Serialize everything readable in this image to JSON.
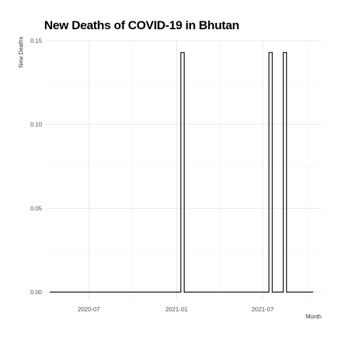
{
  "chart_data": {
    "type": "line",
    "step": true,
    "title": "New Deaths of COVID-19 in Bhutan",
    "xlabel": "Month",
    "ylabel": "New Deaths",
    "x_range": [
      "2020-04-01",
      "2021-11-01"
    ],
    "ylim": [
      0,
      0.15
    ],
    "x_ticks": [
      {
        "date": "2020-07-01",
        "label": "2020-07"
      },
      {
        "date": "2021-01-01",
        "label": "2021-01"
      },
      {
        "date": "2021-07-01",
        "label": "2021-07"
      }
    ],
    "y_ticks": [
      {
        "value": 0,
        "label": "0.00"
      },
      {
        "value": 0.05,
        "label": "0.05"
      },
      {
        "value": 0.1,
        "label": "0.10"
      },
      {
        "value": 0.15,
        "label": "0.15"
      }
    ],
    "grid": true,
    "series": [
      {
        "color": "#000000",
        "points": [
          [
            "2020-04-10",
            0
          ],
          [
            "2021-01-10",
            0
          ],
          [
            "2021-01-10",
            0.1429
          ],
          [
            "2021-01-17",
            0.1429
          ],
          [
            "2021-01-17",
            0
          ],
          [
            "2021-07-14",
            0
          ],
          [
            "2021-07-14",
            0.1429
          ],
          [
            "2021-07-21",
            0.1429
          ],
          [
            "2021-07-21",
            0
          ],
          [
            "2021-08-13",
            0
          ],
          [
            "2021-08-13",
            0.1429
          ],
          [
            "2021-08-20",
            0.1429
          ],
          [
            "2021-08-20",
            0
          ],
          [
            "2021-10-15",
            0
          ]
        ]
      }
    ]
  }
}
